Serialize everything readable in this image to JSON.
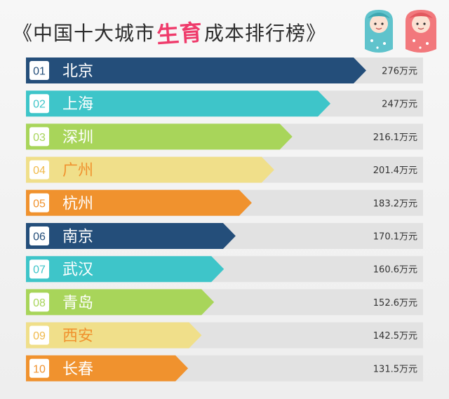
{
  "title": {
    "prefix": "《中国十大城市",
    "highlight": "生育",
    "suffix": "成本排行榜》"
  },
  "colors": {
    "navy": "#244e7a",
    "teal": "#3ec5c9",
    "lime": "#a8d55a",
    "sand": "#f0df8a",
    "orange": "#f0922e",
    "track": "#e2e2e2",
    "blue_baby": "#5fc3cc",
    "pink_baby": "#f2787c"
  },
  "icons": [
    "baby-blue-icon",
    "baby-pink-icon"
  ],
  "chart_data": {
    "type": "bar",
    "orientation": "horizontal",
    "categories": [
      "北京",
      "上海",
      "深圳",
      "广州",
      "杭州",
      "南京",
      "武汉",
      "青岛",
      "西安",
      "长春"
    ],
    "ranks": [
      "01",
      "02",
      "03",
      "04",
      "05",
      "06",
      "07",
      "08",
      "09",
      "10"
    ],
    "values": [
      276,
      247,
      216.1,
      201.4,
      183.2,
      170.1,
      160.6,
      152.6,
      142.5,
      131.5
    ],
    "value_labels": [
      "276万元",
      "247万元",
      "216.1万元",
      "201.4万元",
      "183.2万元",
      "170.1万元",
      "160.6万元",
      "152.6万元",
      "142.5万元",
      "131.5万元"
    ],
    "unit": "万元",
    "bar_colors": [
      "#244e7a",
      "#3ec5c9",
      "#a8d55a",
      "#f0df8a",
      "#f0922e",
      "#244e7a",
      "#3ec5c9",
      "#a8d55a",
      "#f0df8a",
      "#f0922e"
    ],
    "label_colors": [
      "#ffffff",
      "#ffffff",
      "#ffffff",
      "#f0922e",
      "#ffffff",
      "#ffffff",
      "#ffffff",
      "#ffffff",
      "#f0922e",
      "#ffffff"
    ],
    "rank_box_text_colors": [
      "#244e7a",
      "#3ec5c9",
      "#a8d55a",
      "#f0b94a",
      "#f0922e",
      "#244e7a",
      "#3ec5c9",
      "#a8d55a",
      "#f0b94a",
      "#f0922e"
    ],
    "xlabel": "",
    "ylabel": "",
    "grid": false,
    "legend": "none"
  }
}
